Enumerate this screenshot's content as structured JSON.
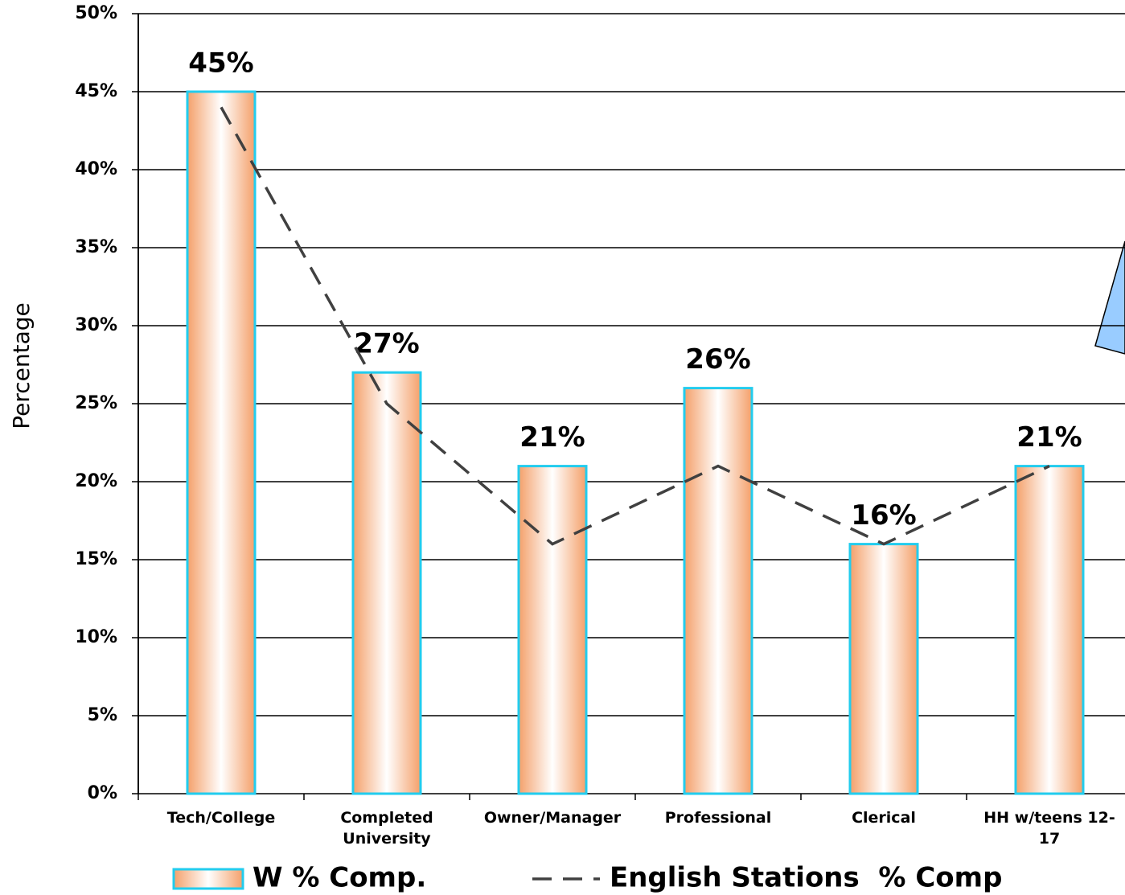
{
  "chart_data": {
    "type": "bar",
    "categories": [
      "Tech/College",
      "Completed University",
      "Owner/Manager",
      "Professional",
      "Clerical",
      "HH w/teens 12-17"
    ],
    "series": [
      {
        "name": "W % Comp.",
        "type": "bar",
        "color": "#f4a06a",
        "edge_color": "#22ccee",
        "values": [
          45,
          27,
          21,
          26,
          16,
          21
        ],
        "value_labels": [
          "45%",
          "27%",
          "21%",
          "26%",
          "16%",
          "21%"
        ]
      },
      {
        "name": "English Stations  % Comp",
        "type": "line",
        "color": "#404040",
        "values": [
          44,
          25,
          16,
          21,
          16,
          21
        ]
      }
    ],
    "y_label": "Percentage",
    "ylim": [
      0,
      50
    ],
    "yticks": [
      {
        "value": 0,
        "label": "0%"
      },
      {
        "value": 5,
        "label": "5%"
      },
      {
        "value": 10,
        "label": "10%"
      },
      {
        "value": 15,
        "label": "15%"
      },
      {
        "value": 20,
        "label": "20%"
      },
      {
        "value": 25,
        "label": "25%"
      },
      {
        "value": 30,
        "label": "30%"
      },
      {
        "value": 35,
        "label": "35%"
      },
      {
        "value": 40,
        "label": "40%"
      },
      {
        "value": 45,
        "label": "45%"
      },
      {
        "value": 50,
        "label": "50%"
      }
    ],
    "grid": true
  }
}
